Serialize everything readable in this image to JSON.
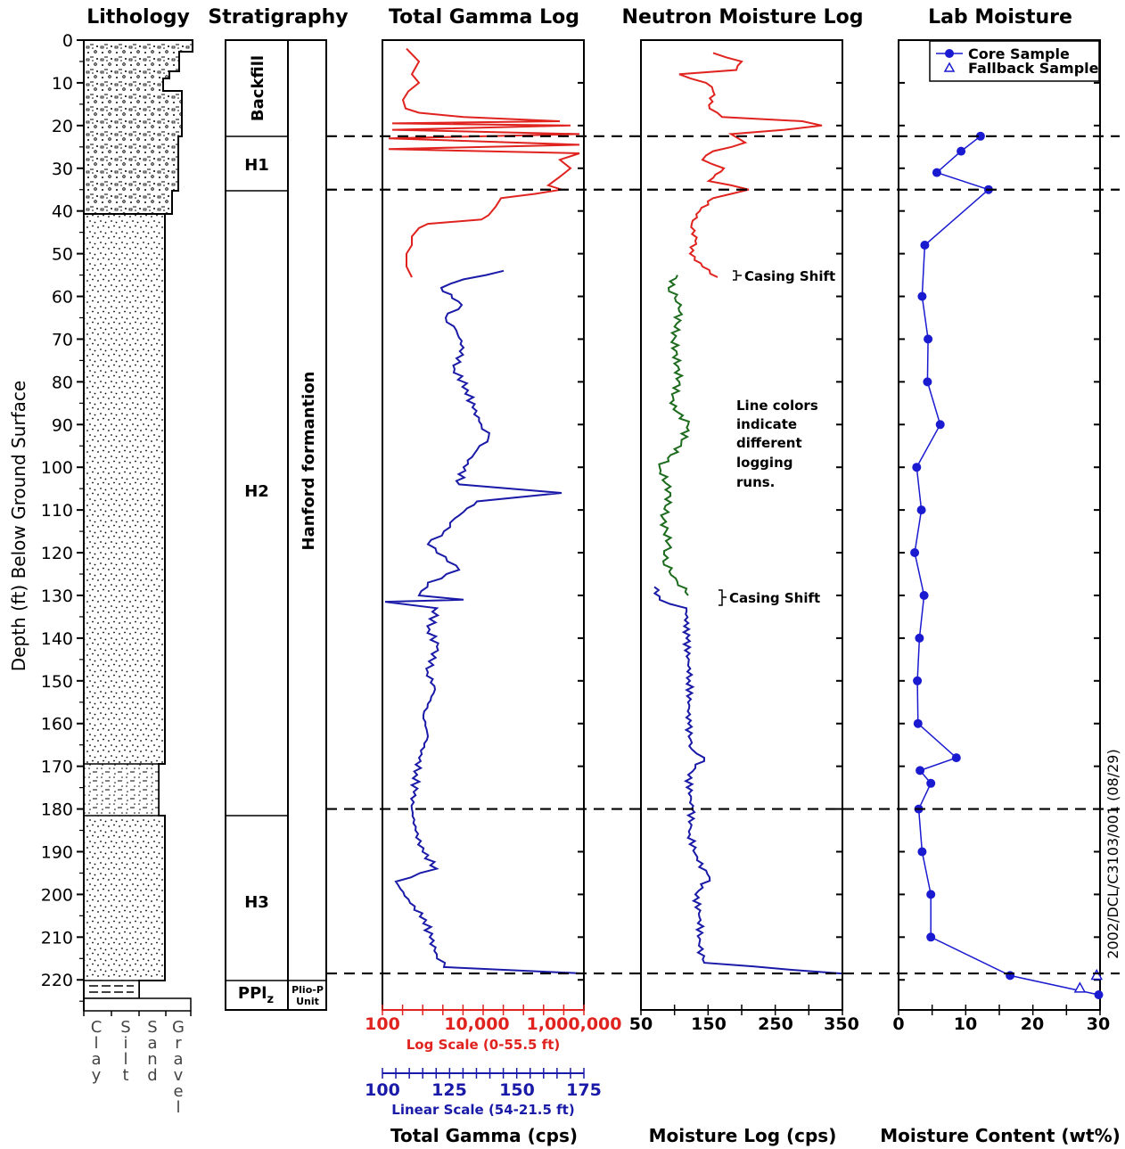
{
  "colors": {
    "red": "#e0231f",
    "blue": "#1a1aa8",
    "green": "#1d6b1d",
    "core": "#1a1ad0"
  },
  "lithology": {
    "title": "Lithology",
    "columns": [
      "Clay",
      "Silt",
      "Sand",
      "Gravel"
    ],
    "clay_letters": [
      "C",
      "l",
      "a",
      "y"
    ],
    "silt_letters": [
      "S",
      "i",
      "l",
      "t"
    ],
    "sand_letters": [
      "S",
      "a",
      "n",
      "d"
    ],
    "gravel_letters": [
      "G",
      "r",
      "a",
      "v",
      "e",
      "l"
    ]
  },
  "stratigraphy": {
    "title": "Stratigraphy",
    "units": [
      "Backfill",
      "H1",
      "H2",
      "H3",
      "PPlz"
    ],
    "formation": "Hanford formantion",
    "plio_label": "Plio-P",
    "plio_label2": "Unit",
    "pplz_main": "PPl",
    "pplz_sub": "z"
  },
  "depth_axis": {
    "label": "Depth (ft) Below Ground Surface",
    "ticks": [
      0,
      10,
      20,
      30,
      40,
      50,
      60,
      70,
      80,
      90,
      100,
      110,
      120,
      130,
      140,
      150,
      160,
      170,
      180,
      190,
      200,
      210,
      220
    ],
    "range": [
      0,
      225
    ]
  },
  "boundaries_ft": [
    22.5,
    35,
    180,
    218.5
  ],
  "gamma": {
    "title": "Total Gamma Log",
    "log_ticks": [
      "100",
      "10,000",
      "1,000,000"
    ],
    "log_scale_label": "Log Scale (0-55.5 ft)",
    "lin_ticks": [
      "100",
      "125",
      "150",
      "175"
    ],
    "lin_scale_label": "Linear Scale (54-21.5 ft)",
    "unit_label": "Total Gamma (cps)"
  },
  "neutron": {
    "title": "Neutron Moisture Log",
    "ticks": [
      "50",
      "150",
      "250",
      "350"
    ],
    "unit_label": "Moisture Log (cps)",
    "casing_shift_1": "Casing Shift",
    "casing_shift_2": "Casing Shift",
    "note_lines": [
      "Line colors",
      "indicate",
      "different",
      "logging",
      "runs."
    ]
  },
  "lab": {
    "title": "Lab Moisture",
    "ticks": [
      "0",
      "10",
      "20",
      "30"
    ],
    "unit_label": "Moisture Content (wt%)",
    "legend_core": "Core Sample",
    "legend_fallback": "Fallback Sample",
    "side_label": "2002/DCL/C3103/001 (08/29)"
  },
  "chart_data": {
    "type": "line",
    "title": "",
    "y_axis": {
      "label": "Depth (ft) Below Ground Surface",
      "range": [
        0,
        225
      ]
    },
    "series": [
      {
        "name": "Core Sample",
        "x_unit": "wt%",
        "x_range": [
          0,
          30
        ],
        "points": [
          [
            12.2,
            22.5
          ],
          [
            9.3,
            26
          ],
          [
            5.7,
            31
          ],
          [
            13.4,
            35
          ],
          [
            3.9,
            48
          ],
          [
            3.5,
            60
          ],
          [
            4.4,
            70
          ],
          [
            4.3,
            80
          ],
          [
            6.2,
            90
          ],
          [
            2.7,
            100
          ],
          [
            3.4,
            110
          ],
          [
            2.4,
            120
          ],
          [
            3.8,
            130
          ],
          [
            3.1,
            140
          ],
          [
            2.8,
            150
          ],
          [
            2.9,
            160
          ],
          [
            8.6,
            168
          ],
          [
            3.2,
            171
          ],
          [
            4.8,
            174
          ],
          [
            3.0,
            180
          ],
          [
            3.5,
            190
          ],
          [
            4.8,
            200
          ],
          [
            4.8,
            210
          ],
          [
            16.6,
            219
          ],
          [
            29.8,
            223.5
          ]
        ]
      },
      {
        "name": "Fallback Sample",
        "x_unit": "wt%",
        "x_range": [
          0,
          30
        ],
        "points": [
          [
            29.5,
            219
          ],
          [
            27.0,
            222
          ]
        ]
      }
    ]
  }
}
